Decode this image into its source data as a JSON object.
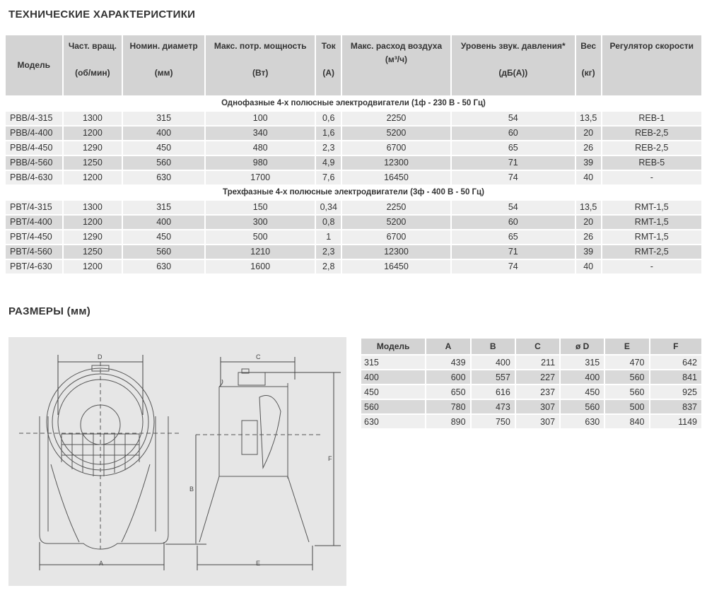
{
  "spec": {
    "title": "ТЕХНИЧЕСКИЕ ХАРАКТЕРИСТИКИ",
    "headers": [
      {
        "label": "Модель",
        "unit": ""
      },
      {
        "label": "Част. вращ.",
        "unit": "(об/мин)"
      },
      {
        "label": "Номин. диаметр",
        "unit": "(мм)"
      },
      {
        "label": "Макс. потр. мощность",
        "unit": "(Вт)"
      },
      {
        "label": "Ток",
        "unit": "(А)"
      },
      {
        "label": "Макс. расход воздуха",
        "unit": "(м³/ч)"
      },
      {
        "label": "Уровень звук. давления*",
        "unit": "(дБ(А))"
      },
      {
        "label": "Вес",
        "unit": "(кг)"
      },
      {
        "label": "Регулятор скорости",
        "unit": ""
      }
    ],
    "sections": [
      {
        "title": "Однофазные 4-х полюсные электродвигатели (1ф - 230 В - 50 Гц)",
        "rows": [
          [
            "PBB/4-315",
            "1300",
            "315",
            "100",
            "0,6",
            "2250",
            "54",
            "13,5",
            "REB-1"
          ],
          [
            "PBB/4-400",
            "1200",
            "400",
            "340",
            "1,6",
            "5200",
            "60",
            "20",
            "REB-2,5"
          ],
          [
            "PBB/4-450",
            "1290",
            "450",
            "480",
            "2,3",
            "6700",
            "65",
            "26",
            "REB-2,5"
          ],
          [
            "PBB/4-560",
            "1250",
            "560",
            "980",
            "4,9",
            "12300",
            "71",
            "39",
            "REB-5"
          ],
          [
            "PBB/4-630",
            "1200",
            "630",
            "1700",
            "7,6",
            "16450",
            "74",
            "40",
            "-"
          ]
        ]
      },
      {
        "title": "Трехфазные 4-х полюсные электродвигатели (3ф - 400 В - 50 Гц)",
        "rows": [
          [
            "PBT/4-315",
            "1300",
            "315",
            "150",
            "0,34",
            "2250",
            "54",
            "13,5",
            "RMT-1,5"
          ],
          [
            "PBT/4-400",
            "1200",
            "400",
            "300",
            "0,8",
            "5200",
            "60",
            "20",
            "RMT-1,5"
          ],
          [
            "PBT/4-450",
            "1290",
            "450",
            "500",
            "1",
            "6700",
            "65",
            "26",
            "RMT-1,5"
          ],
          [
            "PBT/4-560",
            "1250",
            "560",
            "1210",
            "2,3",
            "12300",
            "71",
            "39",
            "RMT-2,5"
          ],
          [
            "PBT/4-630",
            "1200",
            "630",
            "1600",
            "2,8",
            "16450",
            "74",
            "40",
            "-"
          ]
        ]
      }
    ]
  },
  "dims": {
    "title": "РАЗМЕРЫ (мм)",
    "headers": [
      "Модель",
      "A",
      "B",
      "C",
      "ø D",
      "E",
      "F"
    ],
    "rows": [
      [
        "315",
        "439",
        "400",
        "211",
        "315",
        "470",
        "642"
      ],
      [
        "400",
        "600",
        "557",
        "227",
        "400",
        "560",
        "841"
      ],
      [
        "450",
        "650",
        "616",
        "237",
        "450",
        "560",
        "925"
      ],
      [
        "560",
        "780",
        "473",
        "307",
        "560",
        "500",
        "837"
      ],
      [
        "630",
        "890",
        "750",
        "307",
        "630",
        "840",
        "1149"
      ]
    ]
  },
  "drawing": {
    "labels": [
      "A",
      "B",
      "C",
      "D",
      "E",
      "F"
    ]
  }
}
